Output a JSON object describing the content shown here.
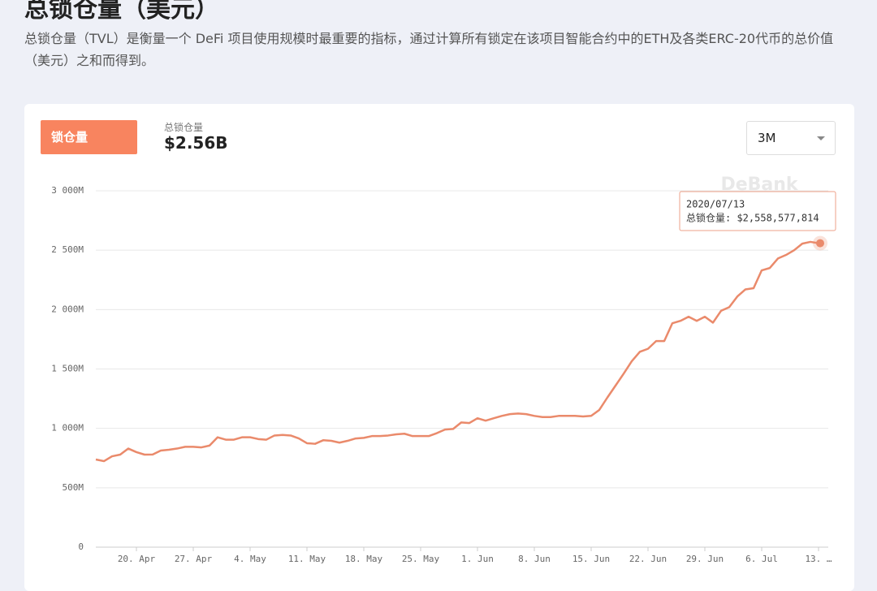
{
  "header": {
    "title": "总锁仓量（美元）",
    "description": "总锁仓量（TVL）是衡量一个 DeFi 项目使用规模时最重要的指标，通过计算所有锁定在该项目智能合约中的ETH及各类ERC-20代币的总价值（美元）之和而得到。"
  },
  "card": {
    "tab": "锁仓量",
    "stat_label": "总锁仓量",
    "stat_value": "$2.56B",
    "range": "3M",
    "watermark": "DeBank"
  },
  "chart_data": {
    "type": "line",
    "color": "#ea8a6b",
    "grid": true,
    "ylim": [
      0,
      3000
    ],
    "yticks": [
      0,
      {
        "value": 500,
        "label": "500M"
      },
      {
        "value": 1000,
        "label": "1 000M"
      },
      {
        "value": 1500,
        "label": "1 500M"
      },
      {
        "value": 2000,
        "label": "2 000M"
      },
      {
        "value": 2500,
        "label": "2 500M"
      },
      {
        "value": 3000,
        "label": "3 000M"
      }
    ],
    "categories": [
      null,
      null,
      null,
      null,
      null,
      "20. Apr",
      null,
      null,
      null,
      null,
      null,
      null,
      "27. Apr",
      null,
      null,
      null,
      null,
      null,
      null,
      "4. May",
      null,
      null,
      null,
      null,
      null,
      null,
      "11. May",
      null,
      null,
      null,
      null,
      null,
      null,
      "18. May",
      null,
      null,
      null,
      null,
      null,
      null,
      "25. May",
      null,
      null,
      null,
      null,
      null,
      null,
      "1. Jun",
      null,
      null,
      null,
      null,
      null,
      null,
      "8. Jun",
      null,
      null,
      null,
      null,
      null,
      null,
      "15. Jun",
      null,
      null,
      null,
      null,
      null,
      null,
      "22. Jun",
      null,
      null,
      null,
      null,
      null,
      null,
      "29. Jun",
      null,
      null,
      null,
      null,
      null,
      null,
      "6. Jul",
      null,
      null,
      null,
      null,
      null,
      null,
      "13. …"
    ],
    "values": [
      738,
      724,
      765,
      779,
      830,
      800,
      779,
      780,
      813,
      820,
      830,
      845,
      845,
      840,
      855,
      925,
      905,
      905,
      925,
      925,
      910,
      905,
      940,
      945,
      940,
      915,
      875,
      870,
      900,
      895,
      880,
      895,
      915,
      920,
      935,
      935,
      940,
      950,
      955,
      935,
      935,
      935,
      960,
      990,
      995,
      1050,
      1045,
      1085,
      1065,
      1085,
      1105,
      1120,
      1125,
      1120,
      1105,
      1095,
      1095,
      1105,
      1105,
      1105,
      1100,
      1105,
      1155,
      1260,
      1360,
      1460,
      1565,
      1645,
      1670,
      1735,
      1735,
      1885,
      1905,
      1940,
      1905,
      1940,
      1890,
      1990,
      2020,
      2110,
      2170,
      2180,
      2330,
      2350,
      2430,
      2460,
      2500,
      2555,
      2570,
      2558.577814
    ],
    "tooltip": {
      "date": "2020/07/13",
      "label": "总锁仓量: $2,558,577,814"
    }
  }
}
